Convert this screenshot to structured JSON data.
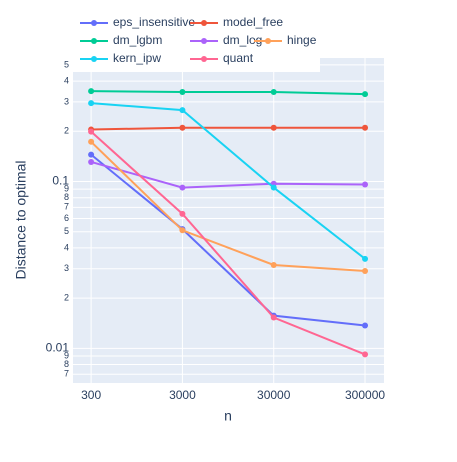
{
  "chart_data": {
    "type": "line",
    "x_label": "n",
    "y_label": "Distance to optimal",
    "x": [
      300,
      3000,
      30000,
      300000
    ],
    "xlim": [
      190,
      484000
    ],
    "xticks": [
      300,
      3000,
      30000,
      300000
    ],
    "xlog": true,
    "ylim": [
      0.0062,
      0.55
    ],
    "ylog": true,
    "grid": true,
    "yticks": [
      {
        "value": 0.5,
        "label": "5"
      },
      {
        "value": 0.4,
        "label": "4"
      },
      {
        "value": 0.3,
        "label": "3"
      },
      {
        "value": 0.2,
        "label": "2"
      },
      0.1,
      {
        "value": 0.09,
        "label": "9"
      },
      {
        "value": 0.08,
        "label": "8"
      },
      {
        "value": 0.07,
        "label": "7"
      },
      {
        "value": 0.06,
        "label": "6"
      },
      {
        "value": 0.05,
        "label": "5"
      },
      {
        "value": 0.04,
        "label": "4"
      },
      {
        "value": 0.03,
        "label": "3"
      },
      {
        "value": 0.02,
        "label": "2"
      },
      0.01,
      {
        "value": 0.009,
        "label": "9"
      },
      {
        "value": 0.008,
        "label": "8"
      },
      {
        "value": 0.007,
        "label": "7"
      }
    ],
    "series": [
      {
        "name": "eps_insensitive",
        "color": "#636efa",
        "values": [
          0.145,
          0.0518,
          0.0157,
          0.0137
        ]
      },
      {
        "name": "model_free",
        "color": "#ef553b",
        "values": [
          0.205,
          0.21,
          0.21,
          0.21
        ]
      },
      {
        "name": "dm_lgbm",
        "color": "#00cc96",
        "values": [
          0.348,
          0.344,
          0.344,
          0.334
        ]
      },
      {
        "name": "dm_log",
        "color": "#ab63fa",
        "values": [
          0.131,
          0.092,
          0.097,
          0.096
        ]
      },
      {
        "name": "hinge",
        "color": "#ffa15a",
        "values": [
          0.173,
          0.051,
          0.0316,
          0.0291
        ]
      },
      {
        "name": "kern_ipw",
        "color": "#19d3f3",
        "values": [
          0.295,
          0.268,
          0.092,
          0.0344
        ]
      },
      {
        "name": "quant",
        "color": "#ff6692",
        "values": [
          0.199,
          0.064,
          0.0153,
          0.0092
        ]
      }
    ]
  }
}
